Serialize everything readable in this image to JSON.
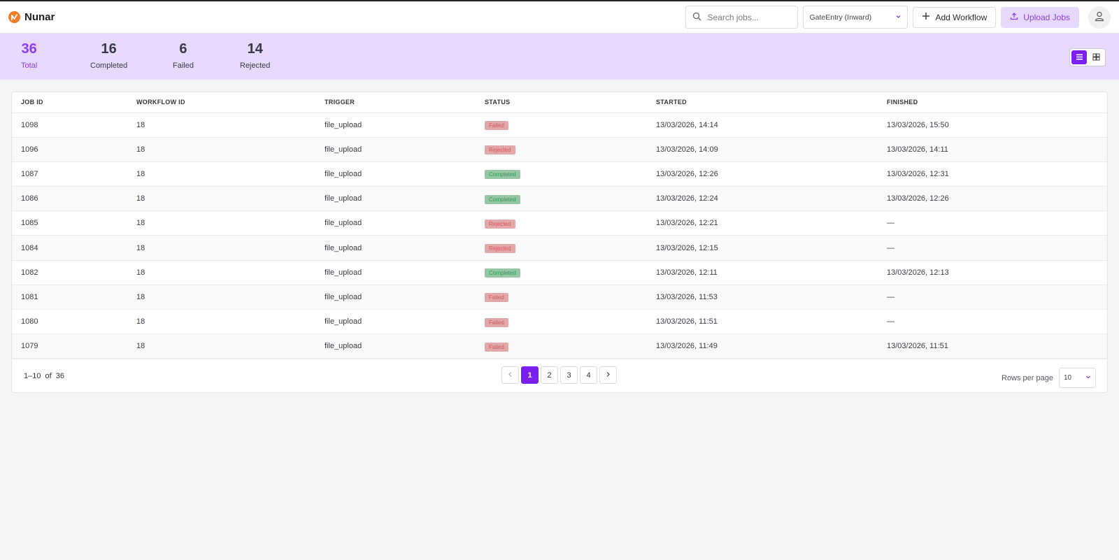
{
  "app": {
    "name": "Nunar"
  },
  "header": {
    "search_placeholder": "Search jobs...",
    "workflow_select": "GateEntry (Inward)",
    "add_workflow_label": "Add Workflow",
    "upload_jobs_label": "Upload Jobs"
  },
  "stats": [
    {
      "value": "36",
      "label": "Total"
    },
    {
      "value": "16",
      "label": "Completed"
    },
    {
      "value": "6",
      "label": "Failed"
    },
    {
      "value": "14",
      "label": "Rejected"
    }
  ],
  "table": {
    "columns": [
      "JOB ID",
      "WORKFLOW ID",
      "TRIGGER",
      "STATUS",
      "STARTED",
      "FINISHED"
    ],
    "rows": [
      {
        "job_id": "1098",
        "workflow_id": "18",
        "trigger": "file_upload",
        "status": "Failed",
        "started": "13/03/2026, 14:14",
        "finished": "13/03/2026, 15:50"
      },
      {
        "job_id": "1096",
        "workflow_id": "18",
        "trigger": "file_upload",
        "status": "Rejected",
        "started": "13/03/2026, 14:09",
        "finished": "13/03/2026, 14:11"
      },
      {
        "job_id": "1087",
        "workflow_id": "18",
        "trigger": "file_upload",
        "status": "Completed",
        "started": "13/03/2026, 12:26",
        "finished": "13/03/2026, 12:31"
      },
      {
        "job_id": "1086",
        "workflow_id": "18",
        "trigger": "file_upload",
        "status": "Completed",
        "started": "13/03/2026, 12:24",
        "finished": "13/03/2026, 12:26"
      },
      {
        "job_id": "1085",
        "workflow_id": "18",
        "trigger": "file_upload",
        "status": "Rejected",
        "started": "13/03/2026, 12:21",
        "finished": "—"
      },
      {
        "job_id": "1084",
        "workflow_id": "18",
        "trigger": "file_upload",
        "status": "Rejected",
        "started": "13/03/2026, 12:15",
        "finished": "—"
      },
      {
        "job_id": "1082",
        "workflow_id": "18",
        "trigger": "file_upload",
        "status": "Completed",
        "started": "13/03/2026, 12:11",
        "finished": "13/03/2026, 12:13"
      },
      {
        "job_id": "1081",
        "workflow_id": "18",
        "trigger": "file_upload",
        "status": "Failed",
        "started": "13/03/2026, 11:53",
        "finished": "—"
      },
      {
        "job_id": "1080",
        "workflow_id": "18",
        "trigger": "file_upload",
        "status": "Failed",
        "started": "13/03/2026, 11:51",
        "finished": "—"
      },
      {
        "job_id": "1079",
        "workflow_id": "18",
        "trigger": "file_upload",
        "status": "Failed",
        "started": "13/03/2026, 11:49",
        "finished": "13/03/2026, 11:51"
      }
    ]
  },
  "pagination": {
    "range_start_end": "1–10",
    "of_label": "of",
    "total": "36",
    "pages": [
      "1",
      "2",
      "3",
      "4"
    ],
    "current_page": "1",
    "rows_per_page_label": "Rows per page",
    "rows_per_page_value": "10"
  },
  "colors": {
    "accent": "#7b1ff0",
    "stats_bg": "#e6d9fb",
    "failed": "#d8575d",
    "completed": "#2f9b57"
  },
  "icons": {
    "search": "search-icon",
    "dropdown": "chevron-down-icon",
    "add": "plus-icon",
    "upload": "upload-icon",
    "user": "user-icon",
    "list_view": "list-view-icon",
    "grid_view": "grid-view-icon",
    "prev": "chevron-left-icon",
    "next": "chevron-right-icon"
  }
}
